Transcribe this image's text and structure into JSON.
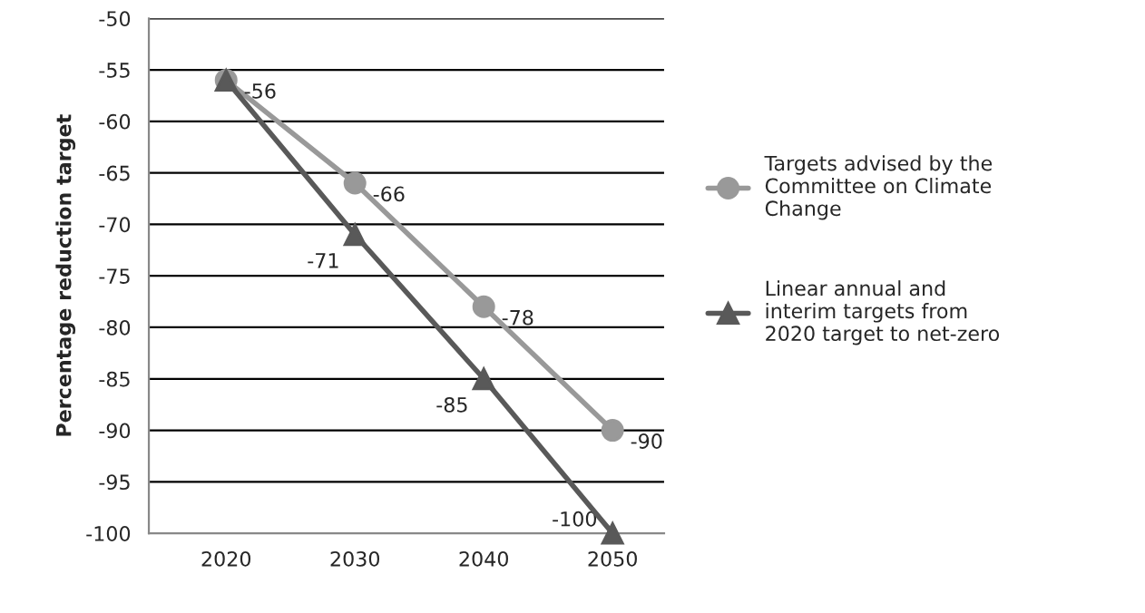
{
  "chart_data": {
    "type": "line",
    "ylabel": "Percentage reduction target",
    "categories": [
      "2020",
      "2030",
      "2040",
      "2050"
    ],
    "series": [
      {
        "name": "Targets advised by the Committee on Climate Change",
        "color": "#999999",
        "marker": "circle",
        "values": [
          -56,
          -66,
          -78,
          -90
        ],
        "value_labels": [
          "-56",
          "-66",
          "-78",
          "-90"
        ]
      },
      {
        "name": "Linear annual and interim targets from 2020 target to net-zero",
        "color": "#595959",
        "marker": "triangle",
        "values": [
          -56,
          -71,
          -85,
          -100
        ],
        "value_labels": [
          null,
          "-71",
          "-85",
          "-100"
        ]
      }
    ],
    "ylim": [
      -100,
      -50
    ],
    "yticks": [
      -100,
      -95,
      -90,
      -85,
      -80,
      -75,
      -70,
      -65,
      -60,
      -55,
      -50
    ],
    "grid": "y",
    "legend": "right",
    "line_style": "solid"
  }
}
